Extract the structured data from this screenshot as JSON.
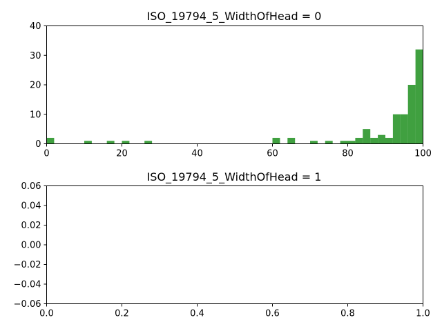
{
  "chart_data": [
    {
      "type": "bar",
      "title": "ISO_19794_5_WidthOfHead = 0",
      "xlabel": "",
      "ylabel": "",
      "xlim": [
        0,
        100
      ],
      "ylim": [
        0,
        40
      ],
      "xticks": [
        "0",
        "20",
        "40",
        "60",
        "80",
        "100"
      ],
      "yticks": [
        "0",
        "10",
        "20",
        "30",
        "40"
      ],
      "color": "#008000",
      "bin_width": 2,
      "bins": [
        {
          "x0": 0,
          "count": 2
        },
        {
          "x0": 10,
          "count": 1
        },
        {
          "x0": 16,
          "count": 1
        },
        {
          "x0": 20,
          "count": 1
        },
        {
          "x0": 26,
          "count": 1
        },
        {
          "x0": 60,
          "count": 2
        },
        {
          "x0": 64,
          "count": 2
        },
        {
          "x0": 70,
          "count": 1
        },
        {
          "x0": 74,
          "count": 1
        },
        {
          "x0": 78,
          "count": 1
        },
        {
          "x0": 80,
          "count": 1
        },
        {
          "x0": 82,
          "count": 2
        },
        {
          "x0": 84,
          "count": 5
        },
        {
          "x0": 86,
          "count": 2
        },
        {
          "x0": 88,
          "count": 3
        },
        {
          "x0": 90,
          "count": 2
        },
        {
          "x0": 92,
          "count": 10
        },
        {
          "x0": 94,
          "count": 10
        },
        {
          "x0": 96,
          "count": 20
        },
        {
          "x0": 98,
          "count": 32
        }
      ]
    },
    {
      "type": "bar",
      "title": "ISO_19794_5_WidthOfHead = 1",
      "xlabel": "",
      "ylabel": "",
      "xlim": [
        0,
        1
      ],
      "ylim": [
        -0.06,
        0.06
      ],
      "xticks": [
        "0.0",
        "0.2",
        "0.4",
        "0.6",
        "0.8",
        "1.0"
      ],
      "yticks": [
        "−0.06",
        "−0.04",
        "−0.02",
        "0.00",
        "0.02",
        "0.04",
        "0.06"
      ],
      "color": "#008000",
      "bins": []
    }
  ]
}
